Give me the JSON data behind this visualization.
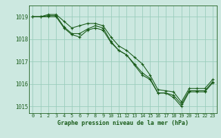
{
  "title": "Graphe pression niveau de la mer (hPa)",
  "bg_color": "#cce8e0",
  "grid_color": "#99ccbb",
  "line_color": "#1a5c1a",
  "xlim": [
    -0.5,
    23.5
  ],
  "ylim": [
    1014.7,
    1019.5
  ],
  "yticks": [
    1015,
    1016,
    1017,
    1018,
    1019
  ],
  "xticks": [
    0,
    1,
    2,
    3,
    4,
    5,
    6,
    7,
    8,
    9,
    10,
    11,
    12,
    13,
    14,
    15,
    16,
    17,
    18,
    19,
    20,
    21,
    22,
    23
  ],
  "series": [
    {
      "x": [
        0,
        1,
        2,
        3,
        4,
        5,
        6,
        7,
        8,
        9,
        10,
        11,
        12,
        13,
        14,
        15,
        16,
        17,
        18,
        19,
        20,
        21,
        22,
        23
      ],
      "y": [
        1019.0,
        1019.0,
        1019.1,
        1019.1,
        1018.8,
        1018.5,
        1018.6,
        1018.7,
        1018.7,
        1018.6,
        1018.1,
        1017.7,
        1017.5,
        1017.2,
        1016.9,
        1016.4,
        1015.75,
        1015.7,
        1015.65,
        1015.2,
        1015.8,
        1015.8,
        1015.8,
        1016.2
      ]
    },
    {
      "x": [
        0,
        1,
        2,
        3,
        4,
        5,
        6,
        7,
        8,
        9,
        10,
        11,
        12,
        13,
        14,
        15,
        16,
        17,
        18,
        19,
        20,
        21,
        22,
        23
      ],
      "y": [
        1019.0,
        1019.0,
        1019.05,
        1019.05,
        1018.55,
        1018.25,
        1018.25,
        1018.45,
        1018.6,
        1018.5,
        1017.9,
        1017.5,
        1017.3,
        1016.9,
        1016.5,
        1016.25,
        1015.6,
        1015.6,
        1015.5,
        1015.1,
        1015.7,
        1015.7,
        1015.7,
        1016.1
      ]
    },
    {
      "x": [
        0,
        1,
        2,
        3,
        4,
        5,
        6,
        7,
        8,
        9,
        10,
        11,
        12,
        13,
        14,
        15,
        16,
        17,
        18,
        19,
        20,
        21,
        22,
        23
      ],
      "y": [
        1019.0,
        1019.0,
        1019.0,
        1019.0,
        1018.5,
        1018.2,
        1018.1,
        1018.4,
        1018.5,
        1018.4,
        1017.85,
        1017.5,
        1017.3,
        1016.85,
        1016.4,
        1016.2,
        1015.6,
        1015.6,
        1015.4,
        1015.0,
        1015.65,
        1015.65,
        1015.65,
        1016.05
      ]
    }
  ],
  "figwidth": 3.2,
  "figheight": 2.0,
  "dpi": 100
}
